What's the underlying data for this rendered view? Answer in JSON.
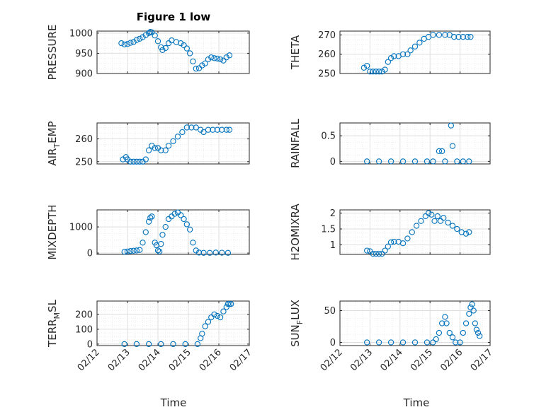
{
  "chart_data": {
    "type": "scatter",
    "title": "Figure 1 low",
    "x_axis": {
      "label": "Time",
      "ticks": [
        "02/12",
        "02/13",
        "02/14",
        "02/15",
        "02/16",
        "02/17"
      ],
      "range_days": [
        12,
        17
      ]
    },
    "marker_color": "#0072BD",
    "grid": true,
    "panels": [
      {
        "ylabel": "PRESSURE",
        "ylim": [
          900,
          1005
        ],
        "yticks": [
          900,
          950,
          1000
        ],
        "points": [
          [
            12.8,
            975
          ],
          [
            12.9,
            972
          ],
          [
            13.0,
            973
          ],
          [
            13.1,
            976
          ],
          [
            13.2,
            978
          ],
          [
            13.3,
            983
          ],
          [
            13.4,
            986
          ],
          [
            13.5,
            990
          ],
          [
            13.6,
            995
          ],
          [
            13.7,
            1000
          ],
          [
            13.75,
            1003
          ],
          [
            13.8,
            1002
          ],
          [
            13.9,
            994
          ],
          [
            14.0,
            980
          ],
          [
            14.1,
            965
          ],
          [
            14.15,
            958
          ],
          [
            14.25,
            963
          ],
          [
            14.35,
            975
          ],
          [
            14.45,
            982
          ],
          [
            14.6,
            978
          ],
          [
            14.75,
            975
          ],
          [
            14.85,
            970
          ],
          [
            14.95,
            962
          ],
          [
            15.05,
            950
          ],
          [
            15.15,
            930
          ],
          [
            15.25,
            912
          ],
          [
            15.35,
            913
          ],
          [
            15.45,
            920
          ],
          [
            15.55,
            925
          ],
          [
            15.65,
            935
          ],
          [
            15.75,
            940
          ],
          [
            15.85,
            938
          ],
          [
            15.95,
            937
          ],
          [
            16.05,
            935
          ],
          [
            16.15,
            932
          ],
          [
            16.25,
            940
          ],
          [
            16.35,
            945
          ]
        ]
      },
      {
        "ylabel": "THETA",
        "ylim": [
          250,
          272
        ],
        "yticks": [
          250,
          260,
          270
        ],
        "points": [
          [
            12.8,
            253
          ],
          [
            12.9,
            254
          ],
          [
            13.0,
            251
          ],
          [
            13.1,
            251
          ],
          [
            13.2,
            251
          ],
          [
            13.3,
            251
          ],
          [
            13.4,
            251
          ],
          [
            13.5,
            252
          ],
          [
            13.6,
            256
          ],
          [
            13.7,
            258
          ],
          [
            13.8,
            259
          ],
          [
            13.95,
            259
          ],
          [
            14.1,
            260
          ],
          [
            14.25,
            260
          ],
          [
            14.35,
            262
          ],
          [
            14.5,
            264
          ],
          [
            14.65,
            266
          ],
          [
            14.8,
            268
          ],
          [
            14.95,
            269
          ],
          [
            15.1,
            270
          ],
          [
            15.3,
            270
          ],
          [
            15.5,
            270
          ],
          [
            15.65,
            270
          ],
          [
            15.8,
            269
          ],
          [
            15.95,
            269
          ],
          [
            16.1,
            269
          ],
          [
            16.25,
            269
          ],
          [
            16.35,
            269
          ]
        ]
      },
      {
        "ylabel": "AIR_TEMP",
        "ylim": [
          249,
          267
        ],
        "yticks": [
          250,
          260
        ],
        "points": [
          [
            12.85,
            251
          ],
          [
            12.95,
            252
          ],
          [
            13.0,
            251
          ],
          [
            13.1,
            250
          ],
          [
            13.2,
            250
          ],
          [
            13.3,
            250
          ],
          [
            13.4,
            250
          ],
          [
            13.5,
            250
          ],
          [
            13.6,
            251
          ],
          [
            13.7,
            255
          ],
          [
            13.8,
            257
          ],
          [
            13.9,
            256
          ],
          [
            14.0,
            256
          ],
          [
            14.1,
            255
          ],
          [
            14.25,
            255
          ],
          [
            14.35,
            257
          ],
          [
            14.5,
            259
          ],
          [
            14.65,
            261
          ],
          [
            14.8,
            263
          ],
          [
            14.95,
            265
          ],
          [
            15.1,
            265
          ],
          [
            15.25,
            265
          ],
          [
            15.4,
            264
          ],
          [
            15.5,
            263
          ],
          [
            15.65,
            264
          ],
          [
            15.8,
            264
          ],
          [
            15.95,
            264
          ],
          [
            16.1,
            264
          ],
          [
            16.25,
            264
          ],
          [
            16.35,
            264
          ]
        ]
      },
      {
        "ylabel": "RAINFALL",
        "ylim": [
          -0.05,
          0.75
        ],
        "yticks": [
          0,
          0.5
        ],
        "points": [
          [
            12.9,
            0
          ],
          [
            13.3,
            0
          ],
          [
            13.7,
            0
          ],
          [
            14.1,
            0
          ],
          [
            14.5,
            0
          ],
          [
            14.9,
            0
          ],
          [
            15.1,
            0
          ],
          [
            15.3,
            0.2
          ],
          [
            15.4,
            0.2
          ],
          [
            15.5,
            0
          ],
          [
            15.7,
            0.7
          ],
          [
            15.75,
            0.3
          ],
          [
            15.9,
            0
          ],
          [
            16.1,
            0
          ],
          [
            16.3,
            0
          ]
        ]
      },
      {
        "ylabel": "MIXDEPTH",
        "ylim": [
          -50,
          1650
        ],
        "yticks": [
          0,
          1000
        ],
        "points": [
          [
            12.9,
            50
          ],
          [
            13.0,
            60
          ],
          [
            13.1,
            80
          ],
          [
            13.2,
            90
          ],
          [
            13.3,
            100
          ],
          [
            13.4,
            120
          ],
          [
            13.5,
            400
          ],
          [
            13.6,
            800
          ],
          [
            13.7,
            1200
          ],
          [
            13.75,
            1350
          ],
          [
            13.8,
            1400
          ],
          [
            13.9,
            400
          ],
          [
            13.95,
            300
          ],
          [
            14.0,
            100
          ],
          [
            14.05,
            60
          ],
          [
            14.1,
            350
          ],
          [
            14.15,
            700
          ],
          [
            14.25,
            1000
          ],
          [
            14.35,
            1300
          ],
          [
            14.45,
            1400
          ],
          [
            14.55,
            1500
          ],
          [
            14.65,
            1550
          ],
          [
            14.75,
            1450
          ],
          [
            14.85,
            1300
          ],
          [
            14.95,
            1100
          ],
          [
            15.05,
            900
          ],
          [
            15.15,
            400
          ],
          [
            15.25,
            100
          ],
          [
            15.35,
            20
          ],
          [
            15.5,
            10
          ],
          [
            15.7,
            10
          ],
          [
            15.9,
            20
          ],
          [
            16.1,
            15
          ],
          [
            16.3,
            10
          ]
        ]
      },
      {
        "ylabel": "H2OMIXRA",
        "ylim": [
          0.7,
          2.1
        ],
        "yticks": [
          1,
          1.5,
          2
        ],
        "points": [
          [
            12.9,
            0.82
          ],
          [
            13.0,
            0.8
          ],
          [
            13.1,
            0.72
          ],
          [
            13.2,
            0.72
          ],
          [
            13.3,
            0.72
          ],
          [
            13.4,
            0.72
          ],
          [
            13.5,
            0.82
          ],
          [
            13.6,
            0.95
          ],
          [
            13.7,
            1.08
          ],
          [
            13.8,
            1.1
          ],
          [
            13.95,
            1.1
          ],
          [
            14.1,
            1.05
          ],
          [
            14.25,
            1.2
          ],
          [
            14.4,
            1.4
          ],
          [
            14.55,
            1.6
          ],
          [
            14.7,
            1.75
          ],
          [
            14.85,
            1.9
          ],
          [
            14.95,
            2.0
          ],
          [
            15.05,
            1.95
          ],
          [
            15.15,
            1.75
          ],
          [
            15.25,
            1.9
          ],
          [
            15.35,
            1.75
          ],
          [
            15.45,
            1.85
          ],
          [
            15.6,
            1.7
          ],
          [
            15.75,
            1.6
          ],
          [
            15.9,
            1.5
          ],
          [
            16.05,
            1.4
          ],
          [
            16.2,
            1.35
          ],
          [
            16.3,
            1.4
          ]
        ]
      },
      {
        "ylabel": "TERR_MSL",
        "ylim": [
          -10,
          290
        ],
        "yticks": [
          0,
          100,
          200
        ],
        "points": [
          [
            12.9,
            0
          ],
          [
            13.3,
            0
          ],
          [
            13.7,
            0
          ],
          [
            14.1,
            0
          ],
          [
            14.5,
            0
          ],
          [
            14.9,
            0
          ],
          [
            15.3,
            0
          ],
          [
            15.4,
            40
          ],
          [
            15.45,
            70
          ],
          [
            15.55,
            120
          ],
          [
            15.65,
            150
          ],
          [
            15.75,
            180
          ],
          [
            15.85,
            200
          ],
          [
            15.95,
            190
          ],
          [
            16.05,
            180
          ],
          [
            16.15,
            220
          ],
          [
            16.25,
            250
          ],
          [
            16.3,
            270
          ],
          [
            16.35,
            270
          ],
          [
            16.4,
            270
          ]
        ]
      },
      {
        "ylabel": "SUN_FLUX",
        "ylim": [
          -5,
          65
        ],
        "yticks": [
          0,
          50
        ],
        "points": [
          [
            12.9,
            0
          ],
          [
            13.3,
            0
          ],
          [
            13.7,
            0
          ],
          [
            14.1,
            0
          ],
          [
            14.5,
            0
          ],
          [
            14.9,
            0
          ],
          [
            15.1,
            0
          ],
          [
            15.2,
            5
          ],
          [
            15.3,
            15
          ],
          [
            15.4,
            30
          ],
          [
            15.5,
            40
          ],
          [
            15.55,
            30
          ],
          [
            15.65,
            15
          ],
          [
            15.75,
            8
          ],
          [
            15.85,
            0
          ],
          [
            16.0,
            0
          ],
          [
            16.1,
            15
          ],
          [
            16.2,
            30
          ],
          [
            16.3,
            45
          ],
          [
            16.35,
            55
          ],
          [
            16.4,
            60
          ],
          [
            16.45,
            50
          ],
          [
            16.5,
            30
          ],
          [
            16.55,
            20
          ],
          [
            16.6,
            15
          ],
          [
            16.65,
            10
          ]
        ]
      }
    ]
  }
}
